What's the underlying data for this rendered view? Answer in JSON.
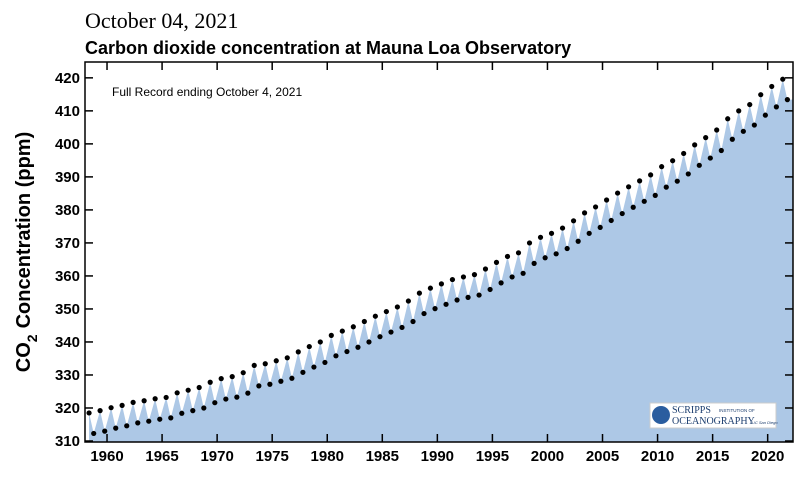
{
  "date_heading": "October 04, 2021",
  "chart_data": {
    "type": "scatter-area",
    "title": "Carbon dioxide concentration at Mauna Loa Observatory",
    "annotation": "Full Record ending October 4, 2021",
    "y_label": [
      "CO",
      "2",
      "Concentration (ppm)"
    ],
    "logo": [
      "SCRIPPS",
      "INSTITUTION OF",
      "OCEANOGRAPHY",
      "UC San Diego"
    ],
    "color": "#000000",
    "fill_color": "#adc8e6",
    "xlim": [
      1958,
      2022.3
    ],
    "ylim": [
      309.7,
      424.8
    ],
    "xticks": [
      1960,
      1965,
      1970,
      1975,
      1980,
      1985,
      1990,
      1995,
      2000,
      2005,
      2010,
      2015,
      2020
    ],
    "yticks": [
      310,
      320,
      330,
      340,
      350,
      360,
      370,
      380,
      390,
      400,
      410,
      420
    ],
    "x": [
      1958.37,
      1958.79,
      1959.37,
      1959.79,
      1960.37,
      1960.79,
      1961.37,
      1961.79,
      1962.37,
      1962.79,
      1963.37,
      1963.79,
      1964.37,
      1964.79,
      1965.37,
      1965.79,
      1966.37,
      1966.79,
      1967.37,
      1967.79,
      1968.37,
      1968.79,
      1969.37,
      1969.79,
      1970.37,
      1970.79,
      1971.37,
      1971.79,
      1972.37,
      1972.79,
      1973.37,
      1973.79,
      1974.37,
      1974.79,
      1975.37,
      1975.79,
      1976.37,
      1976.79,
      1977.37,
      1977.79,
      1978.37,
      1978.79,
      1979.37,
      1979.79,
      1980.37,
      1980.79,
      1981.37,
      1981.79,
      1982.37,
      1982.79,
      1983.37,
      1983.79,
      1984.37,
      1984.79,
      1985.37,
      1985.79,
      1986.37,
      1986.79,
      1987.37,
      1987.79,
      1988.37,
      1988.79,
      1989.37,
      1989.79,
      1990.37,
      1990.79,
      1991.37,
      1991.79,
      1992.37,
      1992.79,
      1993.37,
      1993.79,
      1994.37,
      1994.79,
      1995.37,
      1995.79,
      1996.37,
      1996.79,
      1997.37,
      1997.79,
      1998.37,
      1998.79,
      1999.37,
      1999.79,
      2000.37,
      2000.79,
      2001.37,
      2001.79,
      2002.37,
      2002.79,
      2003.37,
      2003.79,
      2004.37,
      2004.79,
      2005.37,
      2005.79,
      2006.37,
      2006.79,
      2007.37,
      2007.79,
      2008.37,
      2008.79,
      2009.37,
      2009.79,
      2010.37,
      2010.79,
      2011.37,
      2011.79,
      2012.37,
      2012.79,
      2013.37,
      2013.79,
      2014.37,
      2014.79,
      2015.37,
      2015.79,
      2016.37,
      2016.79,
      2017.37,
      2017.79,
      2018.37,
      2018.79,
      2019.37,
      2019.79,
      2020.37,
      2020.79,
      2021.37,
      2021.79
    ],
    "values": [
      318.5,
      312.3,
      319.2,
      313.0,
      320.1,
      313.9,
      320.8,
      314.6,
      321.7,
      315.5,
      322.2,
      316.0,
      322.8,
      316.6,
      323.2,
      317.0,
      324.6,
      318.4,
      325.4,
      319.2,
      326.2,
      320.0,
      327.8,
      321.6,
      328.9,
      322.7,
      329.5,
      323.3,
      330.7,
      324.5,
      332.9,
      326.7,
      333.4,
      327.2,
      334.3,
      328.1,
      335.2,
      329.0,
      337.0,
      330.8,
      338.6,
      332.4,
      340.0,
      333.8,
      342.0,
      335.8,
      343.3,
      337.1,
      344.6,
      338.4,
      346.2,
      340.0,
      347.8,
      341.6,
      349.2,
      343.0,
      350.6,
      344.4,
      352.4,
      346.2,
      354.8,
      348.6,
      356.3,
      350.1,
      357.6,
      351.4,
      358.9,
      352.7,
      359.7,
      353.5,
      360.4,
      354.2,
      362.1,
      355.9,
      364.1,
      357.9,
      365.9,
      359.7,
      367.0,
      360.8,
      370.0,
      363.8,
      371.7,
      365.5,
      372.9,
      366.7,
      374.5,
      368.3,
      376.7,
      370.5,
      379.1,
      372.9,
      380.9,
      374.7,
      383.0,
      376.8,
      385.1,
      378.9,
      387.0,
      380.8,
      388.8,
      382.6,
      390.6,
      384.4,
      393.1,
      386.9,
      394.9,
      388.7,
      397.1,
      390.9,
      399.7,
      393.5,
      401.9,
      395.7,
      404.2,
      398.0,
      407.6,
      401.4,
      410.0,
      403.8,
      411.9,
      405.7,
      414.9,
      408.7,
      417.4,
      411.2,
      419.6,
      413.4
    ]
  }
}
